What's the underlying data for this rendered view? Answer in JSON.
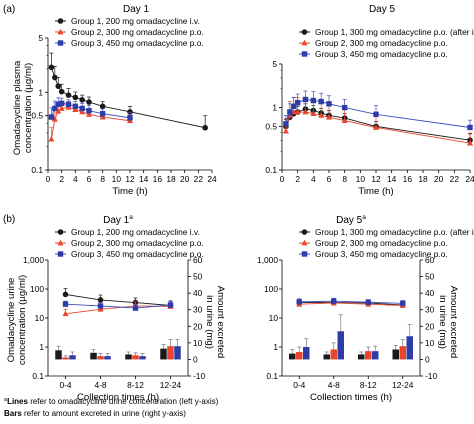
{
  "panel_labels": [
    "(a)",
    "(b)"
  ],
  "footnote": {
    "line1_marker": "a",
    "line1_bold": "Lines",
    "line1_text": " refer to omadacycline urine concentration (left y-axis)",
    "line2_bold": "Bars",
    "line2_text": " refer to amount excreted in urine (right y-axis)"
  },
  "colors": {
    "group1": "#1a1a1a",
    "group2": "#e8452c",
    "group3": "#2e3ca8",
    "group2_line": "#e8452c",
    "group3_line": "#3a4cc0"
  },
  "chart_data": [
    {
      "type": "line",
      "panel": "a",
      "title": "Day 1",
      "xlabel": "Time (h)",
      "ylabel": "Omadacycline plasma concentration (µg/ml)",
      "yscale": "log",
      "ylim": [
        0.1,
        5
      ],
      "yticks": [
        0.1,
        0.5,
        1,
        5
      ],
      "ytick_labels": [
        "0.1",
        "0.5",
        "1",
        "5"
      ],
      "xlim": [
        0,
        24
      ],
      "xticks": [
        0,
        2,
        4,
        6,
        8,
        10,
        12,
        14,
        16,
        18,
        20,
        22,
        24
      ],
      "xtick_labels": [
        "0",
        "2",
        "4",
        "6",
        "8",
        "10",
        "12",
        "14",
        "16",
        "18",
        "20",
        "22",
        "24"
      ],
      "legend": [
        "Group 1, 200 mg omadacycline i.v.",
        "Group 2, 300 mg omadacycline p.o.",
        "Group 3, 450 mg omadacycline p.o."
      ],
      "series": [
        {
          "name": "Group 1, 200 mg omadacycline i.v.",
          "x": [
            0.5,
            1,
            1.5,
            2,
            3,
            4,
            5,
            6,
            8,
            12,
            23
          ],
          "y": [
            2.1,
            1.55,
            1.2,
            1.02,
            0.92,
            0.86,
            0.8,
            0.75,
            0.66,
            0.56,
            0.35
          ],
          "err": [
            1.1,
            0.6,
            0.35,
            0.25,
            0.2,
            0.15,
            0.12,
            0.12,
            0.1,
            0.1,
            0.15
          ]
        },
        {
          "name": "Group 2, 300 mg omadacycline p.o.",
          "x": [
            0.5,
            1,
            1.5,
            2,
            3,
            4,
            5,
            6,
            8,
            12
          ],
          "y": [
            0.25,
            0.45,
            0.57,
            0.62,
            0.64,
            0.6,
            0.56,
            0.52,
            0.48,
            0.43
          ],
          "err": [
            0.1,
            0.15,
            0.15,
            0.15,
            0.12,
            0.1,
            0.1,
            0.1,
            0.08,
            0.08
          ]
        },
        {
          "name": "Group 3, 450 mg omadacycline p.o.",
          "x": [
            0.5,
            1,
            1.5,
            2,
            3,
            4,
            5,
            6,
            8,
            12
          ],
          "y": [
            0.48,
            0.62,
            0.7,
            0.72,
            0.7,
            0.66,
            0.62,
            0.58,
            0.53,
            0.47
          ],
          "err": [
            0.15,
            0.15,
            0.15,
            0.12,
            0.1,
            0.1,
            0.1,
            0.1,
            0.08,
            0.08
          ]
        }
      ]
    },
    {
      "type": "line",
      "panel": "a",
      "title": "Day 5",
      "xlabel": "Time (h)",
      "yscale": "log",
      "ylim": [
        0.1,
        5
      ],
      "yticks": [
        0.1,
        0.5,
        1,
        5
      ],
      "ytick_labels": [
        "0.1",
        "0.5",
        "1",
        "5"
      ],
      "xlim": [
        0,
        24
      ],
      "xticks": [
        0,
        2,
        4,
        6,
        8,
        10,
        12,
        14,
        16,
        18,
        20,
        22,
        24
      ],
      "xtick_labels": [
        "0",
        "2",
        "4",
        "6",
        "8",
        "10",
        "12",
        "14",
        "16",
        "18",
        "20",
        "22",
        "24"
      ],
      "legend": [
        "Group 1, 300 mg omadacycline p.o. (after i.v.)",
        "Group 2, 300 mg omadacycline p.o.",
        "Group 3, 450 mg omadacycline p.o."
      ],
      "series": [
        {
          "name": "Group 1, 300 mg omadacycline p.o. (after i.v.)",
          "x": [
            0.5,
            1,
            1.5,
            2,
            3,
            4,
            5,
            6,
            8,
            12,
            24
          ],
          "y": [
            0.5,
            0.7,
            0.8,
            0.85,
            0.95,
            0.9,
            0.82,
            0.75,
            0.68,
            0.5,
            0.3
          ],
          "err": [
            0.15,
            0.2,
            0.2,
            0.2,
            0.2,
            0.18,
            0.15,
            0.15,
            0.12,
            0.1,
            0.08
          ]
        },
        {
          "name": "Group 2, 300 mg omadacycline p.o.",
          "x": [
            0.5,
            1,
            1.5,
            2,
            3,
            4,
            5,
            6,
            8,
            12,
            24
          ],
          "y": [
            0.42,
            0.75,
            0.85,
            0.85,
            0.85,
            0.8,
            0.75,
            0.7,
            0.62,
            0.48,
            0.27
          ],
          "err": [
            0.25,
            0.5,
            0.6,
            0.6,
            0.6,
            0.55,
            0.5,
            0.45,
            0.4,
            0.3,
            0.12
          ]
        },
        {
          "name": "Group 3, 450 mg omadacycline p.o.",
          "x": [
            0.5,
            1,
            1.5,
            2,
            3,
            4,
            5,
            6,
            8,
            12,
            24
          ],
          "y": [
            0.55,
            0.85,
            1.05,
            1.2,
            1.35,
            1.3,
            1.25,
            1.15,
            1.0,
            0.78,
            0.48
          ],
          "err": [
            0.2,
            0.3,
            0.4,
            0.45,
            0.5,
            0.5,
            0.45,
            0.4,
            0.35,
            0.3,
            0.15
          ]
        }
      ]
    },
    {
      "type": "bar",
      "panel": "b",
      "title": "Day 1",
      "title_marker": "a",
      "xlabel": "Collection times (h)",
      "ylabel": "Omadacycline urine concentration (µg/ml)",
      "y2label": "Amount excreted in urine (mg)",
      "yscale": "log",
      "ylim": [
        0.1,
        1000
      ],
      "yticks": [
        0.1,
        1,
        10,
        100,
        1000
      ],
      "ytick_labels": [
        "0.1",
        "1",
        "10",
        "100",
        "1,000"
      ],
      "y2lim": [
        -10,
        60
      ],
      "y2ticks": [
        -10,
        0,
        10,
        20,
        30,
        40,
        50,
        60
      ],
      "y2tick_labels": [
        "-10",
        "0",
        "10",
        "20",
        "30",
        "40",
        "50",
        "60"
      ],
      "categories": [
        "0-4",
        "4-8",
        "8-12",
        "12-24"
      ],
      "legend": [
        "Group 1, 200 mg omadacycline i.v.",
        "Group 2, 300 mg omadacycline p.o.",
        "Group 3, 450 mg omadacycline p.o."
      ],
      "bar_series": [
        {
          "name": "Group 1, 200 mg omadacycline i.v.",
          "values": [
            5.5,
            4.0,
            3.0,
            6.5
          ],
          "err": [
            2.5,
            2.0,
            1.5,
            2.5
          ]
        },
        {
          "name": "Group 2, 300 mg omadacycline p.o.",
          "values": [
            1.2,
            2.0,
            2.5,
            8.0
          ],
          "err": [
            1.0,
            1.5,
            1.5,
            4.0
          ]
        },
        {
          "name": "Group 3, 450 mg omadacycline p.o.",
          "values": [
            2.5,
            2.0,
            2.0,
            8.0
          ],
          "err": [
            2.0,
            1.5,
            1.5,
            4.0
          ]
        }
      ],
      "line_series": [
        {
          "name": "Group 1, 200 mg omadacycline i.v.",
          "values": [
            65,
            42,
            34,
            27
          ],
          "err": [
            40,
            20,
            15,
            12
          ]
        },
        {
          "name": "Group 2, 300 mg omadacycline p.o.",
          "values": [
            14,
            20,
            26,
            25
          ],
          "err": [
            6,
            8,
            10,
            8
          ]
        },
        {
          "name": "Group 3, 450 mg omadacycline p.o.",
          "values": [
            30,
            26,
            22,
            28
          ],
          "err": [
            8,
            8,
            8,
            8
          ]
        }
      ]
    },
    {
      "type": "bar",
      "panel": "b",
      "title": "Day 5",
      "title_marker": "a",
      "xlabel": "Collection times (h)",
      "ylabel": "Omadacycline urine concentration (µg/ml)",
      "y2label": "Amount excreted in urine (mg)",
      "yscale": "log",
      "ylim": [
        0.1,
        1000
      ],
      "yticks": [
        0.1,
        1,
        10,
        100,
        1000
      ],
      "ytick_labels": [
        "0.1",
        "1",
        "10",
        "100",
        "1,000"
      ],
      "y2lim": [
        -10,
        60
      ],
      "y2ticks": [
        -10,
        0,
        10,
        20,
        30,
        40,
        50,
        60
      ],
      "y2tick_labels": [
        "-10",
        "0",
        "10",
        "20",
        "30",
        "40",
        "50",
        "60"
      ],
      "categories": [
        "0-4",
        "4-8",
        "8-12",
        "12-24"
      ],
      "legend": [
        "Group 1, 300 mg omadacycline p.o. (after i.v.)",
        "Group 2, 300 mg omadacycline p.o.",
        "Group 3, 450 mg omadacycline p.o."
      ],
      "bar_series": [
        {
          "name": "Group 1, 300 mg omadacycline p.o. (after i.v.)",
          "values": [
            3.5,
            3.0,
            3.0,
            6.0
          ],
          "err": [
            2.5,
            1.5,
            1.5,
            2.5
          ]
        },
        {
          "name": "Group 2, 300 mg omadacycline p.o.",
          "values": [
            4.5,
            6.0,
            5.0,
            8.0
          ],
          "err": [
            3.0,
            4.0,
            2.5,
            4.0
          ]
        },
        {
          "name": "Group 3, 450 mg omadacycline p.o.",
          "values": [
            7.5,
            17.0,
            5.0,
            14.0
          ],
          "err": [
            5.0,
            10.0,
            3.0,
            7.0
          ]
        }
      ],
      "line_series": [
        {
          "name": "Group 1, 300 mg omadacycline p.o. (after i.v.)",
          "values": [
            34,
            34,
            33,
            28
          ],
          "err": [
            8,
            8,
            8,
            6
          ]
        },
        {
          "name": "Group 2, 300 mg omadacycline p.o.",
          "values": [
            30,
            33,
            30,
            27
          ],
          "err": [
            10,
            10,
            8,
            6
          ]
        },
        {
          "name": "Group 3, 450 mg omadacycline p.o.",
          "values": [
            36,
            38,
            35,
            32
          ],
          "err": [
            10,
            10,
            8,
            8
          ]
        }
      ]
    }
  ]
}
